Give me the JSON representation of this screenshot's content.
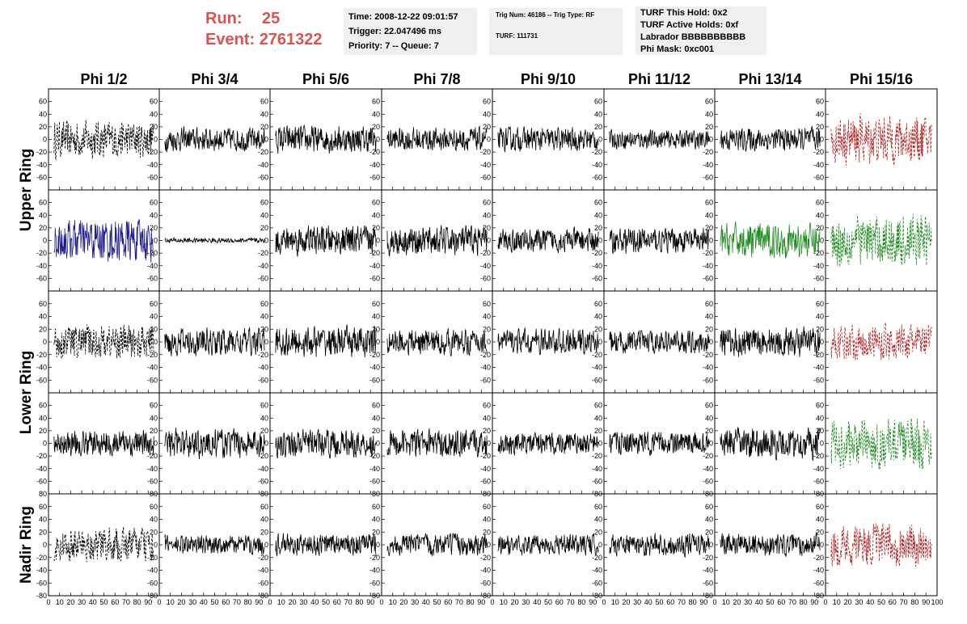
{
  "header": {
    "run_label": "Run:",
    "run_value": "25",
    "event_label": "Event:",
    "event_value": "2761322",
    "time": "Time: 2008-12-22 09:01:57",
    "trigger": "Trigger: 22.047496 ms",
    "priority": "Priority: 7 -- Queue: 7",
    "trig_num": "Trig Num: 46186 -- Trig Type: RF",
    "turf": "TURF: 111731",
    "turf_hold": "TURF This Hold: 0x2",
    "turf_active": "TURF Active Holds: 0xf",
    "labrador": "Labrador BBBBBBBBBB",
    "phi_mask": "Phi Mask: 0xc001"
  },
  "chart_data": {
    "type": "line",
    "columns": [
      "Phi 1/2",
      "Phi 3/4",
      "Phi 5/6",
      "Phi 7/8",
      "Phi 9/10",
      "Phi 11/12",
      "Phi 13/14",
      "Phi 15/16"
    ],
    "ring_labels": [
      "Upper Ring",
      "Lower Ring",
      "Nadir Ring"
    ],
    "xlim": [
      0,
      100
    ],
    "ylim": [
      -80,
      80
    ],
    "x_ticks": [
      0,
      10,
      20,
      30,
      40,
      50,
      60,
      70,
      80,
      90,
      100
    ],
    "x_tick_labels": [
      "0",
      "10",
      "20",
      "30",
      "40",
      "50",
      "60",
      "70",
      "80",
      "90",
      "100"
    ],
    "y_ticks": [
      -80,
      -60,
      -40,
      -20,
      0,
      20,
      40,
      60,
      80
    ],
    "y_tick_labels": [
      "-80",
      "-60",
      "-40",
      "-20",
      "0",
      "20",
      "40",
      "60",
      "80"
    ],
    "grid": false,
    "colors": {
      "normal": "#000000",
      "red": "#b22222",
      "blue": "#1c1c8c",
      "green": "#1e8c1e",
      "header_red": "#d9534f"
    },
    "panels": [
      [
        {
          "amp": 22,
          "style": "dashed",
          "color": "normal"
        },
        {
          "amp": 14,
          "style": "solid",
          "color": "normal"
        },
        {
          "amp": 16,
          "style": "solid",
          "color": "normal"
        },
        {
          "amp": 14,
          "style": "solid",
          "color": "normal"
        },
        {
          "amp": 14,
          "style": "solid",
          "color": "normal"
        },
        {
          "amp": 11,
          "style": "solid",
          "color": "normal"
        },
        {
          "amp": 14,
          "style": "solid",
          "color": "normal"
        },
        {
          "amp": 28,
          "style": "dashed",
          "color": "red"
        }
      ],
      [
        {
          "amp": 25,
          "style": "solid",
          "color": "blue"
        },
        {
          "amp": 3,
          "style": "solid",
          "color": "normal"
        },
        {
          "amp": 17,
          "style": "solid",
          "color": "normal"
        },
        {
          "amp": 17,
          "style": "solid",
          "color": "normal"
        },
        {
          "amp": 14,
          "style": "solid",
          "color": "normal"
        },
        {
          "amp": 15,
          "style": "solid",
          "color": "normal"
        },
        {
          "amp": 20,
          "style": "solid",
          "color": "green"
        },
        {
          "amp": 30,
          "style": "dashed",
          "color": "green"
        }
      ],
      [
        {
          "amp": 20,
          "style": "dashed",
          "color": "normal"
        },
        {
          "amp": 16,
          "style": "solid",
          "color": "normal"
        },
        {
          "amp": 18,
          "style": "solid",
          "color": "normal"
        },
        {
          "amp": 15,
          "style": "solid",
          "color": "normal"
        },
        {
          "amp": 15,
          "style": "solid",
          "color": "normal"
        },
        {
          "amp": 13,
          "style": "solid",
          "color": "normal"
        },
        {
          "amp": 17,
          "style": "solid",
          "color": "normal"
        },
        {
          "amp": 20,
          "style": "dashed",
          "color": "red"
        }
      ],
      [
        {
          "amp": 15,
          "style": "solid",
          "color": "normal"
        },
        {
          "amp": 17,
          "style": "solid",
          "color": "normal"
        },
        {
          "amp": 16,
          "style": "solid",
          "color": "normal"
        },
        {
          "amp": 16,
          "style": "solid",
          "color": "normal"
        },
        {
          "amp": 13,
          "style": "solid",
          "color": "normal"
        },
        {
          "amp": 13,
          "style": "solid",
          "color": "normal"
        },
        {
          "amp": 18,
          "style": "solid",
          "color": "normal"
        },
        {
          "amp": 28,
          "style": "dashed",
          "color": "green"
        }
      ],
      [
        {
          "amp": 20,
          "style": "dashed",
          "color": "normal"
        },
        {
          "amp": 11,
          "style": "solid",
          "color": "normal"
        },
        {
          "amp": 13,
          "style": "solid",
          "color": "normal"
        },
        {
          "amp": 13,
          "style": "solid",
          "color": "normal"
        },
        {
          "amp": 12,
          "style": "solid",
          "color": "normal"
        },
        {
          "amp": 13,
          "style": "solid",
          "color": "normal"
        },
        {
          "amp": 13,
          "style": "solid",
          "color": "normal"
        },
        {
          "amp": 24,
          "style": "dashed",
          "color": "red"
        }
      ]
    ]
  }
}
